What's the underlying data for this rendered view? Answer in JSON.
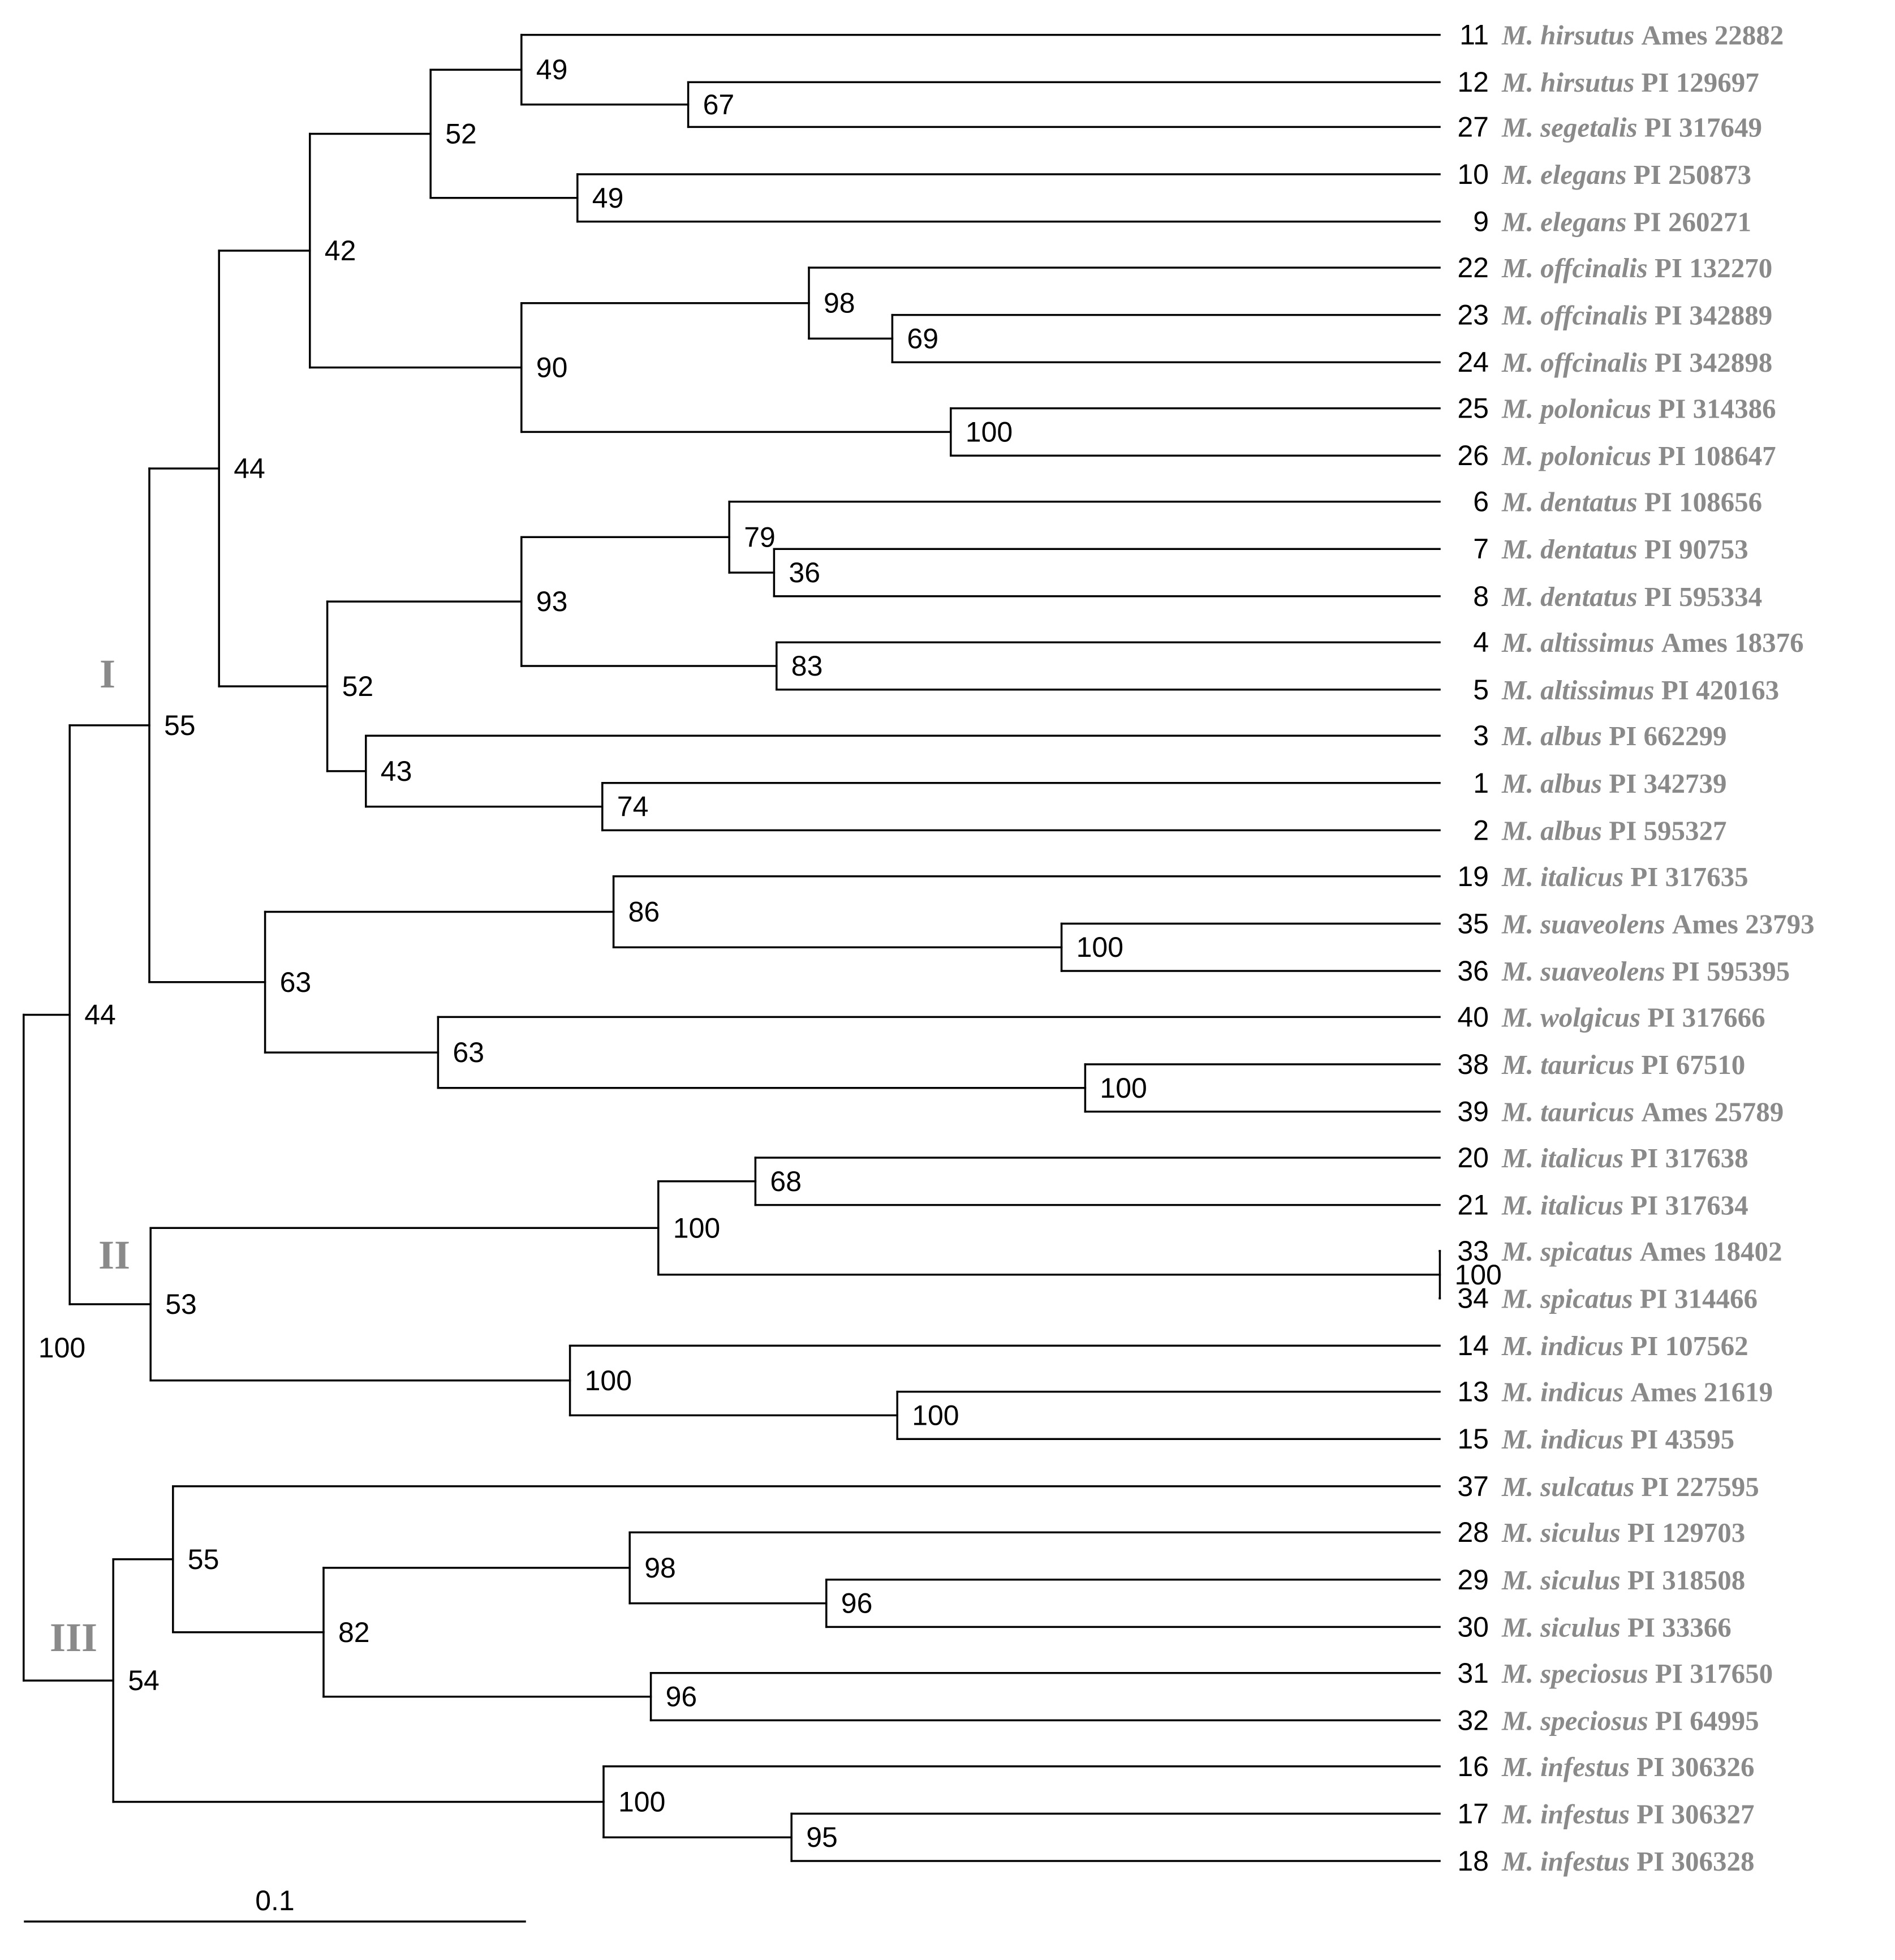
{
  "figure": "Phylogenetic tree of Melilotus accessions",
  "clade_labels": [
    "I",
    "II",
    "III"
  ],
  "scale_bar": {
    "label": "0.1",
    "value": 0.1
  },
  "taxa": [
    {
      "id": "11",
      "species": "M. hirsutus",
      "accession": "Ames 22882"
    },
    {
      "id": "12",
      "species": "M. hirsutus",
      "accession": "PI 129697"
    },
    {
      "id": "27",
      "species": "M. segetalis",
      "accession": "PI 317649"
    },
    {
      "id": "10",
      "species": "M. elegans",
      "accession": "PI 250873"
    },
    {
      "id": "9",
      "species": "M. elegans",
      "accession": "PI 260271"
    },
    {
      "id": "22",
      "species": "M. offcinalis",
      "accession": "PI 132270"
    },
    {
      "id": "23",
      "species": "M. offcinalis",
      "accession": "PI 342889"
    },
    {
      "id": "24",
      "species": "M. offcinalis",
      "accession": "PI 342898"
    },
    {
      "id": "25",
      "species": "M. polonicus",
      "accession": "PI 314386"
    },
    {
      "id": "26",
      "species": "M. polonicus",
      "accession": "PI 108647"
    },
    {
      "id": "6",
      "species": "M. dentatus",
      "accession": "PI 108656"
    },
    {
      "id": "7",
      "species": "M. dentatus",
      "accession": "PI 90753"
    },
    {
      "id": "8",
      "species": "M. dentatus",
      "accession": "PI 595334"
    },
    {
      "id": "4",
      "species": "M. altissimus",
      "accession": "Ames 18376"
    },
    {
      "id": "5",
      "species": "M. altissimus",
      "accession": "PI 420163"
    },
    {
      "id": "3",
      "species": "M. albus",
      "accession": "PI 662299"
    },
    {
      "id": "1",
      "species": "M. albus",
      "accession": "PI 342739"
    },
    {
      "id": "2",
      "species": "M. albus",
      "accession": "PI 595327"
    },
    {
      "id": "19",
      "species": "M. italicus",
      "accession": "PI 317635"
    },
    {
      "id": "35",
      "species": "M. suaveolens",
      "accession": "Ames 23793"
    },
    {
      "id": "36",
      "species": "M. suaveolens",
      "accession": "PI 595395"
    },
    {
      "id": "40",
      "species": "M. wolgicus",
      "accession": "PI 317666"
    },
    {
      "id": "38",
      "species": "M. tauricus",
      "accession": "PI 67510"
    },
    {
      "id": "39",
      "species": "M. tauricus",
      "accession": "Ames 25789"
    },
    {
      "id": "20",
      "species": "M. italicus",
      "accession": "PI 317638"
    },
    {
      "id": "21",
      "species": "M. italicus",
      "accession": "PI 317634"
    },
    {
      "id": "33",
      "species": "M. spicatus",
      "accession": "Ames 18402"
    },
    {
      "id": "34",
      "species": "M. spicatus",
      "accession": "PI 314466"
    },
    {
      "id": "14",
      "species": "M. indicus",
      "accession": "PI 107562"
    },
    {
      "id": "13",
      "species": "M. indicus",
      "accession": "Ames 21619"
    },
    {
      "id": "15",
      "species": "M. indicus",
      "accession": "PI 43595"
    },
    {
      "id": "37",
      "species": "M. sulcatus",
      "accession": "PI 227595"
    },
    {
      "id": "28",
      "species": "M. siculus",
      "accession": "PI 129703"
    },
    {
      "id": "29",
      "species": "M. siculus",
      "accession": "PI 318508"
    },
    {
      "id": "30",
      "species": "M. siculus",
      "accession": "PI 33366"
    },
    {
      "id": "31",
      "species": "M. speciosus",
      "accession": "PI 317650"
    },
    {
      "id": "32",
      "species": "M. speciosus",
      "accession": "PI 64995"
    },
    {
      "id": "16",
      "species": "M. infestus",
      "accession": "PI 306326"
    },
    {
      "id": "17",
      "species": "M. infestus",
      "accession": "PI 306327"
    },
    {
      "id": "18",
      "species": "M. infestus",
      "accession": "PI 306328"
    }
  ],
  "bootstrap_values": [
    "100",
    "44",
    "55",
    "44",
    "42",
    "52",
    "49",
    "67",
    "49",
    "90",
    "98",
    "69",
    "100",
    "52",
    "93",
    "79",
    "36",
    "83",
    "43",
    "74",
    "63",
    "86",
    "100",
    "63",
    "100",
    "53",
    "100",
    "68",
    "100",
    "100",
    "100",
    "54",
    "55",
    "82",
    "98",
    "96",
    "96",
    "100",
    "95"
  ]
}
